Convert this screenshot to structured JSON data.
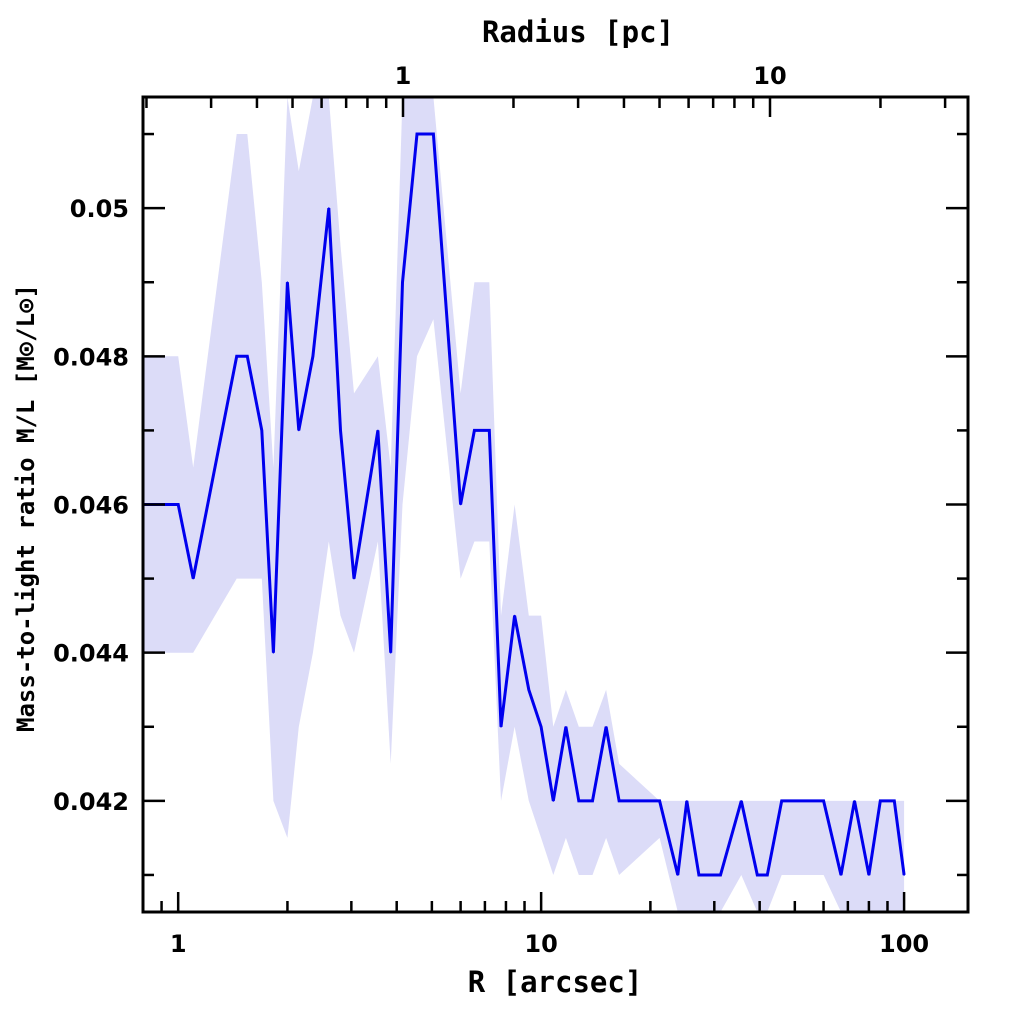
{
  "chart_data": {
    "type": "line",
    "title": "",
    "xlabel": "R [arcsec]",
    "ylabel": "Mass-to-light ratio M/L [M⊙/L⊙]",
    "top_xlabel": "Radius [pc]",
    "xscale": "log",
    "top_xscale": "log",
    "xlim": [
      0.8,
      150
    ],
    "ylim": [
      0.0405,
      0.0515
    ],
    "x_ticks": [
      1,
      10,
      100
    ],
    "x_tick_labels": [
      "1",
      "10",
      "100"
    ],
    "top_x_ticks": [
      1,
      10
    ],
    "top_x_tick_labels": [
      "1",
      "10"
    ],
    "y_ticks": [
      0.042,
      0.044,
      0.046,
      0.048,
      0.05
    ],
    "y_tick_labels": [
      "0.042",
      "0.044",
      "0.046",
      "0.048",
      "0.05"
    ],
    "grid": false,
    "colors": {
      "line": "#0000ee",
      "band": "#dcdcf8"
    },
    "series": [
      {
        "x": [
          0.8,
          1.0,
          1.1,
          1.45,
          1.55,
          1.7,
          1.83,
          2.0,
          2.15,
          2.35,
          2.6,
          2.8,
          3.05,
          3.55,
          3.85,
          4.15,
          4.55,
          5.05,
          6.0,
          6.55,
          7.2,
          7.75,
          8.45,
          9.25,
          10.0,
          10.8,
          11.7,
          12.7,
          13.85,
          15.1,
          16.4,
          21.2,
          23.8,
          25.2,
          27.2,
          31.2,
          35.6,
          39.4,
          42.0,
          46.0,
          60.0,
          67.0,
          73.0,
          80.0,
          86.0,
          94.0,
          100.0
        ],
        "y": [
          0.046,
          0.046,
          0.045,
          0.048,
          0.048,
          0.047,
          0.044,
          0.049,
          0.047,
          0.048,
          0.05,
          0.047,
          0.045,
          0.047,
          0.044,
          0.049,
          0.051,
          0.051,
          0.046,
          0.047,
          0.047,
          0.043,
          0.0445,
          0.0435,
          0.043,
          0.042,
          0.043,
          0.042,
          0.042,
          0.043,
          0.042,
          0.042,
          0.041,
          0.042,
          0.041,
          0.041,
          0.042,
          0.041,
          0.041,
          0.042,
          0.042,
          0.041,
          0.042,
          0.041,
          0.042,
          0.042,
          0.041
        ],
        "y_lower": [
          0.044,
          0.044,
          0.044,
          0.045,
          0.045,
          0.045,
          0.042,
          0.0415,
          0.043,
          0.044,
          0.0455,
          0.0445,
          0.044,
          0.0455,
          0.0425,
          0.046,
          0.048,
          0.0485,
          0.045,
          0.0455,
          0.0455,
          0.042,
          0.043,
          0.042,
          0.0415,
          0.041,
          0.0415,
          0.041,
          0.041,
          0.0415,
          0.041,
          0.0415,
          0.0405,
          0.0405,
          0.0405,
          0.0405,
          0.041,
          0.0405,
          0.0405,
          0.041,
          0.041,
          0.0405,
          0.0405,
          0.0405,
          0.0405,
          0.0405,
          0.0405
        ],
        "y_upper": [
          0.048,
          0.048,
          0.0465,
          0.051,
          0.051,
          0.049,
          0.0465,
          0.0515,
          0.0505,
          0.0515,
          0.0515,
          0.0495,
          0.0475,
          0.048,
          0.0465,
          0.0515,
          0.0515,
          0.0515,
          0.0475,
          0.049,
          0.049,
          0.0445,
          0.046,
          0.0445,
          0.0445,
          0.043,
          0.0435,
          0.043,
          0.043,
          0.0435,
          0.0425,
          0.042,
          0.042,
          0.042,
          0.042,
          0.042,
          0.042,
          0.042,
          0.042,
          0.042,
          0.042,
          0.042,
          0.042,
          0.042,
          0.042,
          0.042,
          0.042
        ]
      }
    ]
  }
}
